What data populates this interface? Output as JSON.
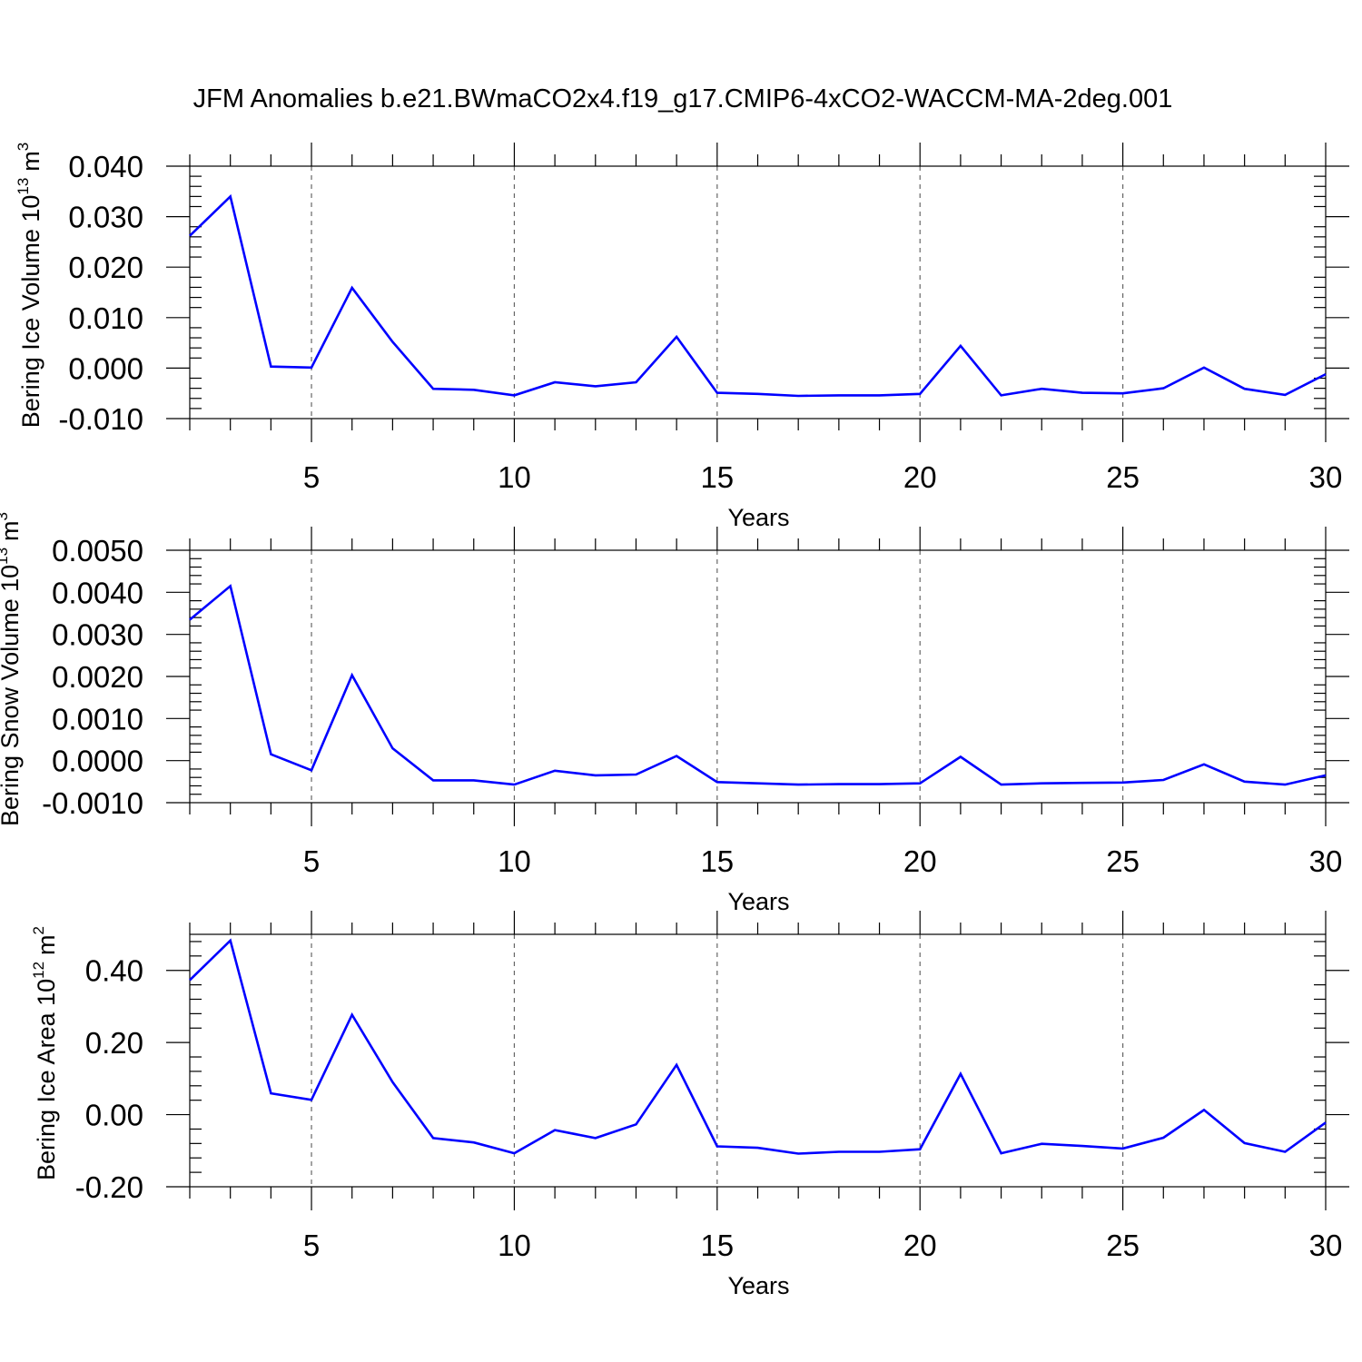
{
  "figure_title": "JFM Anomalies b.e21.BWmaCO2x4.f19_g17.CMIP6-4xCO2-WACCM-MA-2deg.001",
  "colors": {
    "series": "#0000ff",
    "axis": "#000000",
    "grid": "#666666"
  },
  "chart_data": [
    {
      "type": "line",
      "title": "",
      "xlabel": "Years",
      "ylabel": "Bering Ice Volume 10",
      "ylabel_exponent": "13",
      "ylabel_unit": "m",
      "ylabel_unit_exponent": "3",
      "xlim": [
        2,
        30
      ],
      "ylim": [
        -0.01,
        0.04
      ],
      "x_ticks": [
        5,
        10,
        15,
        20,
        25,
        30
      ],
      "x_tick_labels": [
        "5",
        "10",
        "15",
        "20",
        "25",
        "30"
      ],
      "y_ticks": [
        -0.01,
        0.0,
        0.01,
        0.02,
        0.03,
        0.04
      ],
      "y_tick_labels": [
        "-0.010",
        "0.000",
        "0.010",
        "0.020",
        "0.030",
        "0.040"
      ],
      "grid": "vertical dashed at major x ticks",
      "x": [
        2,
        3,
        4,
        5,
        6,
        7,
        8,
        9,
        10,
        11,
        12,
        13,
        14,
        15,
        16,
        17,
        18,
        19,
        20,
        21,
        22,
        23,
        24,
        25,
        26,
        27,
        28,
        29,
        30
      ],
      "series": [
        {
          "values": [
            0.0262,
            0.034,
            0.0003,
            0.0001,
            0.0159,
            0.0052,
            -0.0041,
            -0.0043,
            -0.0054,
            -0.0028,
            -0.0036,
            -0.0028,
            0.0062,
            -0.0049,
            -0.0051,
            -0.0055,
            -0.0054,
            -0.0054,
            -0.0051,
            0.0044,
            -0.0054,
            -0.0041,
            -0.0049,
            -0.005,
            -0.004,
            0.0001,
            -0.0041,
            -0.0053,
            -0.0012
          ]
        }
      ]
    },
    {
      "type": "line",
      "title": "",
      "xlabel": "Years",
      "ylabel": "Bering Snow Volume 10",
      "ylabel_exponent": "13",
      "ylabel_unit": "m",
      "ylabel_unit_exponent": "3",
      "xlim": [
        2,
        30
      ],
      "ylim": [
        -0.001,
        0.005
      ],
      "x_ticks": [
        5,
        10,
        15,
        20,
        25,
        30
      ],
      "x_tick_labels": [
        "5",
        "10",
        "15",
        "20",
        "25",
        "30"
      ],
      "y_ticks": [
        -0.001,
        0.0,
        0.001,
        0.002,
        0.003,
        0.004,
        0.005
      ],
      "y_tick_labels": [
        "-0.0010",
        "0.0000",
        "0.0010",
        "0.0020",
        "0.0030",
        "0.0040",
        "0.0050"
      ],
      "grid": "vertical dashed at major x ticks",
      "x": [
        2,
        3,
        4,
        5,
        6,
        7,
        8,
        9,
        10,
        11,
        12,
        13,
        14,
        15,
        16,
        17,
        18,
        19,
        20,
        21,
        22,
        23,
        24,
        25,
        26,
        27,
        28,
        29,
        30
      ],
      "series": [
        {
          "values": [
            0.00335,
            0.00415,
            0.00015,
            -0.00023,
            0.00203,
            0.00029,
            -0.00047,
            -0.00047,
            -0.00057,
            -0.00024,
            -0.00035,
            -0.00033,
            0.00011,
            -0.00051,
            -0.00054,
            -0.00057,
            -0.00056,
            -0.00056,
            -0.00054,
            9e-05,
            -0.00057,
            -0.00054,
            -0.00053,
            -0.00052,
            -0.00046,
            -9e-05,
            -0.0005,
            -0.00057,
            -0.00035
          ]
        }
      ]
    },
    {
      "type": "line",
      "title": "",
      "xlabel": "Years",
      "ylabel": "Bering Ice Area 10",
      "ylabel_exponent": "12",
      "ylabel_unit": "m",
      "ylabel_unit_exponent": "2",
      "xlim": [
        2,
        30
      ],
      "ylim": [
        -0.2,
        0.5
      ],
      "x_ticks": [
        5,
        10,
        15,
        20,
        25,
        30
      ],
      "x_tick_labels": [
        "5",
        "10",
        "15",
        "20",
        "25",
        "30"
      ],
      "y_ticks": [
        -0.2,
        0.0,
        0.2,
        0.4
      ],
      "y_tick_labels": [
        "-0.20",
        "0.00",
        "0.20",
        "0.40"
      ],
      "grid": "vertical dashed at major x ticks",
      "x": [
        2,
        3,
        4,
        5,
        6,
        7,
        8,
        9,
        10,
        11,
        12,
        13,
        14,
        15,
        16,
        17,
        18,
        19,
        20,
        21,
        22,
        23,
        24,
        25,
        26,
        27,
        28,
        29,
        30
      ],
      "series": [
        {
          "values": [
            0.373,
            0.483,
            0.059,
            0.041,
            0.277,
            0.09,
            -0.065,
            -0.077,
            -0.107,
            -0.043,
            -0.065,
            -0.027,
            0.138,
            -0.088,
            -0.092,
            -0.108,
            -0.103,
            -0.103,
            -0.096,
            0.113,
            -0.107,
            -0.081,
            -0.087,
            -0.094,
            -0.064,
            0.013,
            -0.079,
            -0.103,
            -0.022
          ]
        }
      ]
    }
  ]
}
